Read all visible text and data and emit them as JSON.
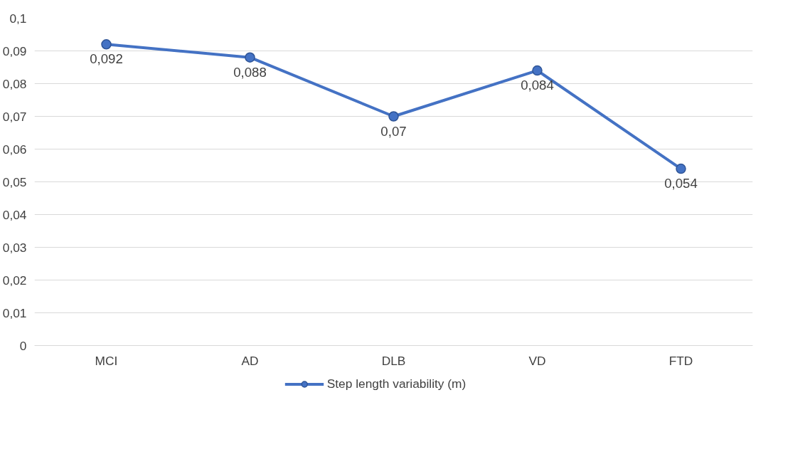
{
  "chart_data": {
    "type": "line",
    "categories": [
      "MCI",
      "AD",
      "DLB",
      "VD",
      "FTD"
    ],
    "series": [
      {
        "name": "Step length variability (m)",
        "color": "#4472c4",
        "values": [
          0.092,
          0.088,
          0.07,
          0.084,
          0.054
        ],
        "value_labels": [
          "0,092",
          "0,088",
          "0,07",
          "0,084",
          "0,054"
        ]
      }
    ],
    "ylim": [
      0,
      0.1
    ],
    "yticks": [
      {
        "value": 0,
        "label": "0"
      },
      {
        "value": 0.01,
        "label": "0,01"
      },
      {
        "value": 0.02,
        "label": "0,02"
      },
      {
        "value": 0.03,
        "label": "0,03"
      },
      {
        "value": 0.04,
        "label": "0,04"
      },
      {
        "value": 0.05,
        "label": "0,05"
      },
      {
        "value": 0.06,
        "label": "0,06"
      },
      {
        "value": 0.07,
        "label": "0,07"
      },
      {
        "value": 0.08,
        "label": "0,08"
      },
      {
        "value": 0.09,
        "label": "0,09"
      },
      {
        "value": 0.1,
        "label": "0,1"
      }
    ],
    "grid": "y",
    "legend": "bottom",
    "marker": "circle",
    "line_style": "solid"
  }
}
